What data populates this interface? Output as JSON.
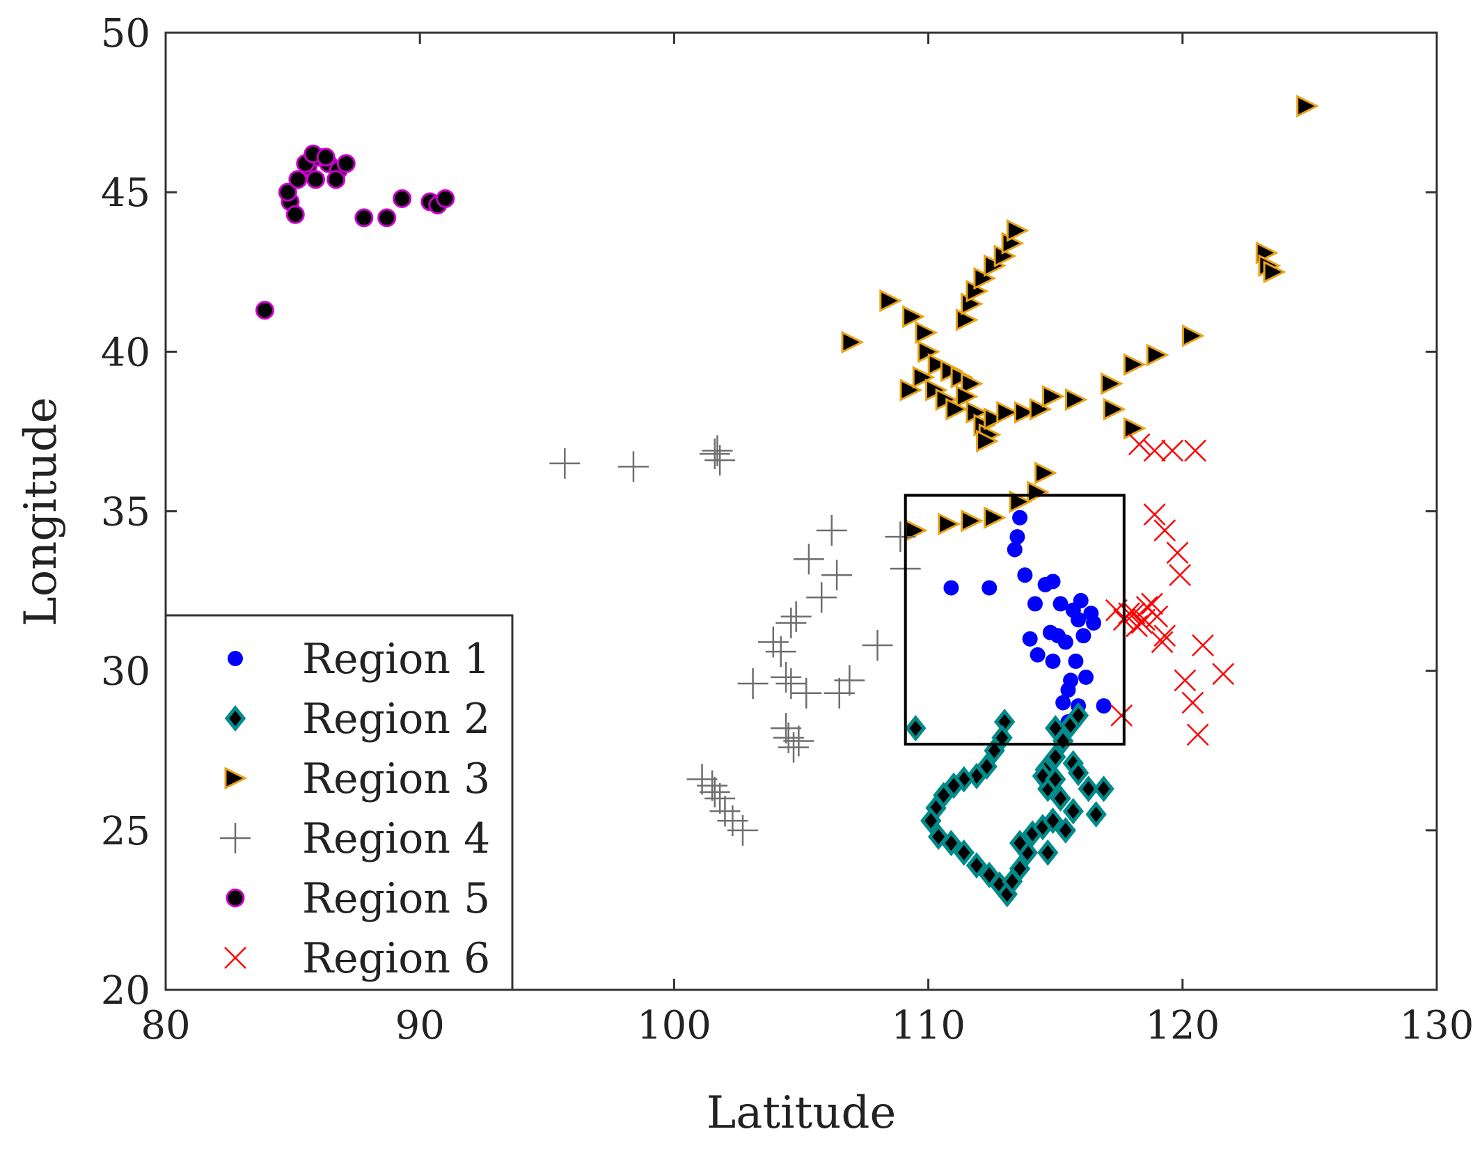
{
  "chart_data": {
    "type": "scatter",
    "xlabel": "Latitude",
    "ylabel": "Longitude",
    "xlim": [
      80,
      130
    ],
    "ylim": [
      20,
      50
    ],
    "xticks": [
      80,
      90,
      100,
      110,
      120,
      130
    ],
    "yticks": [
      20,
      25,
      30,
      35,
      40,
      45,
      50
    ],
    "legend_position": "bottom-left",
    "highlight_box": {
      "x": [
        109.1,
        117.7
      ],
      "y": [
        27.7,
        35.5
      ]
    },
    "series": [
      {
        "name": "Region 1",
        "marker": "circle",
        "color": "#0000ff",
        "points": [
          [
            110.9,
            32.6
          ],
          [
            112.4,
            32.6
          ],
          [
            113.6,
            34.8
          ],
          [
            113.5,
            34.2
          ],
          [
            113.4,
            33.8
          ],
          [
            113.8,
            33.0
          ],
          [
            114.6,
            32.7
          ],
          [
            114.9,
            32.8
          ],
          [
            114.2,
            32.1
          ],
          [
            115.2,
            32.1
          ],
          [
            115.7,
            31.9
          ],
          [
            116.0,
            32.2
          ],
          [
            116.4,
            31.8
          ],
          [
            116.1,
            31.1
          ],
          [
            115.1,
            31.1
          ],
          [
            114.8,
            31.2
          ],
          [
            114.0,
            31.0
          ],
          [
            114.3,
            30.5
          ],
          [
            114.9,
            30.3
          ],
          [
            115.4,
            30.9
          ],
          [
            115.8,
            30.3
          ],
          [
            115.6,
            29.7
          ],
          [
            116.2,
            29.8
          ],
          [
            115.5,
            29.4
          ],
          [
            115.3,
            29.0
          ],
          [
            115.9,
            28.9
          ],
          [
            115.5,
            28.4
          ],
          [
            116.9,
            28.9
          ],
          [
            116.5,
            31.5
          ],
          [
            115.9,
            31.6
          ]
        ]
      },
      {
        "name": "Region 2",
        "marker": "diamond",
        "color": "#008b8b",
        "points": [
          [
            109.5,
            28.2
          ],
          [
            113.0,
            28.4
          ],
          [
            112.9,
            27.9
          ],
          [
            112.6,
            27.5
          ],
          [
            112.3,
            27.0
          ],
          [
            111.9,
            26.7
          ],
          [
            111.4,
            26.6
          ],
          [
            111.0,
            26.4
          ],
          [
            110.6,
            26.1
          ],
          [
            110.3,
            25.7
          ],
          [
            110.1,
            25.3
          ],
          [
            110.4,
            24.8
          ],
          [
            110.9,
            24.6
          ],
          [
            111.4,
            24.3
          ],
          [
            111.9,
            23.9
          ],
          [
            112.4,
            23.6
          ],
          [
            112.8,
            23.3
          ],
          [
            113.1,
            23.0
          ],
          [
            113.3,
            23.4
          ],
          [
            113.6,
            23.8
          ],
          [
            113.9,
            24.3
          ],
          [
            113.6,
            24.6
          ],
          [
            114.1,
            24.9
          ],
          [
            114.5,
            25.1
          ],
          [
            114.9,
            25.3
          ],
          [
            115.4,
            25.0
          ],
          [
            115.7,
            25.6
          ],
          [
            115.2,
            26.0
          ],
          [
            114.7,
            26.3
          ],
          [
            114.6,
            26.9
          ],
          [
            115.0,
            27.3
          ],
          [
            115.3,
            27.8
          ],
          [
            115.0,
            28.2
          ],
          [
            115.6,
            28.3
          ],
          [
            115.9,
            28.6
          ],
          [
            115.7,
            27.1
          ],
          [
            115.9,
            26.8
          ],
          [
            116.3,
            26.3
          ],
          [
            116.9,
            26.3
          ],
          [
            116.6,
            25.5
          ],
          [
            114.7,
            24.3
          ],
          [
            114.5,
            26.7
          ],
          [
            115.0,
            26.6
          ]
        ]
      },
      {
        "name": "Region 3",
        "marker": "triangle-right",
        "color": "#e8a317",
        "points": [
          [
            107.0,
            40.3
          ],
          [
            108.5,
            41.6
          ],
          [
            109.4,
            41.1
          ],
          [
            109.9,
            40.6
          ],
          [
            110.0,
            40.0
          ],
          [
            110.4,
            39.6
          ],
          [
            110.9,
            39.4
          ],
          [
            111.3,
            39.2
          ],
          [
            111.7,
            39.0
          ],
          [
            111.5,
            38.6
          ],
          [
            111.9,
            38.1
          ],
          [
            112.2,
            37.7
          ],
          [
            112.4,
            37.4
          ],
          [
            112.6,
            37.9
          ],
          [
            112.3,
            37.2
          ],
          [
            109.3,
            38.8
          ],
          [
            109.8,
            39.2
          ],
          [
            110.3,
            38.8
          ],
          [
            110.7,
            38.5
          ],
          [
            111.1,
            38.2
          ],
          [
            113.1,
            38.1
          ],
          [
            113.8,
            38.1
          ],
          [
            114.4,
            38.2
          ],
          [
            114.9,
            38.6
          ],
          [
            115.8,
            38.5
          ],
          [
            117.3,
            38.2
          ],
          [
            117.2,
            39.0
          ],
          [
            118.1,
            39.6
          ],
          [
            119.0,
            39.9
          ],
          [
            120.4,
            40.5
          ],
          [
            118.1,
            37.6
          ],
          [
            111.5,
            41.0
          ],
          [
            111.7,
            41.5
          ],
          [
            111.9,
            41.9
          ],
          [
            112.2,
            42.3
          ],
          [
            112.6,
            42.7
          ],
          [
            113.0,
            43.0
          ],
          [
            113.3,
            43.4
          ],
          [
            113.5,
            43.8
          ],
          [
            114.3,
            35.6
          ],
          [
            114.6,
            36.2
          ],
          [
            113.6,
            35.3
          ],
          [
            112.6,
            34.8
          ],
          [
            111.7,
            34.7
          ],
          [
            110.8,
            34.6
          ],
          [
            109.5,
            34.4
          ],
          [
            123.3,
            43.1
          ],
          [
            123.4,
            42.7
          ],
          [
            123.6,
            42.5
          ],
          [
            124.9,
            47.7
          ]
        ]
      },
      {
        "name": "Region 4",
        "marker": "plus",
        "color": "#6e6e6e",
        "points": [
          [
            95.7,
            36.5
          ],
          [
            98.4,
            36.4
          ],
          [
            101.6,
            36.8
          ],
          [
            101.8,
            36.6
          ],
          [
            101.7,
            36.9
          ],
          [
            106.2,
            34.4
          ],
          [
            105.3,
            33.5
          ],
          [
            105.8,
            32.3
          ],
          [
            104.6,
            31.5
          ],
          [
            104.8,
            31.7
          ],
          [
            103.9,
            30.9
          ],
          [
            104.2,
            30.6
          ],
          [
            104.4,
            29.8
          ],
          [
            104.6,
            29.6
          ],
          [
            105.2,
            29.3
          ],
          [
            103.1,
            29.6
          ],
          [
            104.4,
            28.2
          ],
          [
            104.5,
            27.9
          ],
          [
            104.7,
            27.6
          ],
          [
            104.9,
            27.8
          ],
          [
            106.4,
            33.0
          ],
          [
            106.9,
            29.7
          ],
          [
            106.5,
            29.3
          ],
          [
            108.0,
            30.8
          ],
          [
            108.9,
            34.2
          ],
          [
            109.1,
            33.2
          ],
          [
            101.1,
            26.6
          ],
          [
            101.5,
            26.4
          ],
          [
            101.8,
            26.0
          ],
          [
            102.0,
            25.6
          ],
          [
            102.3,
            25.3
          ],
          [
            102.7,
            25.0
          ],
          [
            101.6,
            26.2
          ]
        ]
      },
      {
        "name": "Region 5",
        "marker": "circle-filled-outline",
        "color": "#cc00cc",
        "points": [
          [
            83.9,
            41.3
          ],
          [
            84.9,
            44.7
          ],
          [
            85.1,
            44.3
          ],
          [
            84.8,
            45.0
          ],
          [
            85.2,
            45.4
          ],
          [
            85.6,
            45.8
          ],
          [
            86.0,
            46.1
          ],
          [
            86.4,
            45.9
          ],
          [
            86.8,
            45.7
          ],
          [
            87.1,
            45.9
          ],
          [
            85.9,
            45.4
          ],
          [
            86.7,
            45.4
          ],
          [
            87.8,
            44.2
          ],
          [
            88.7,
            44.2
          ],
          [
            89.3,
            44.8
          ],
          [
            90.4,
            44.7
          ],
          [
            90.7,
            44.6
          ],
          [
            91.0,
            44.8
          ],
          [
            85.5,
            45.9
          ],
          [
            85.8,
            46.2
          ],
          [
            86.3,
            46.1
          ]
        ]
      },
      {
        "name": "Region 6",
        "marker": "x",
        "color": "#ff0000",
        "points": [
          [
            118.3,
            37.1
          ],
          [
            118.9,
            36.9
          ],
          [
            119.6,
            36.9
          ],
          [
            120.5,
            36.9
          ],
          [
            118.9,
            34.9
          ],
          [
            119.3,
            34.4
          ],
          [
            119.8,
            33.7
          ],
          [
            119.9,
            33.0
          ],
          [
            117.4,
            31.9
          ],
          [
            117.7,
            31.6
          ],
          [
            118.1,
            31.8
          ],
          [
            118.4,
            31.5
          ],
          [
            118.8,
            32.1
          ],
          [
            119.0,
            31.7
          ],
          [
            119.3,
            31.1
          ],
          [
            118.5,
            31.6
          ],
          [
            119.2,
            30.9
          ],
          [
            120.1,
            29.7
          ],
          [
            120.4,
            29.0
          ],
          [
            120.6,
            28.0
          ],
          [
            120.8,
            30.8
          ],
          [
            121.6,
            29.9
          ],
          [
            117.6,
            28.6
          ],
          [
            117.9,
            31.8
          ],
          [
            118.2,
            31.4
          ],
          [
            118.6,
            32.0
          ]
        ]
      }
    ]
  }
}
